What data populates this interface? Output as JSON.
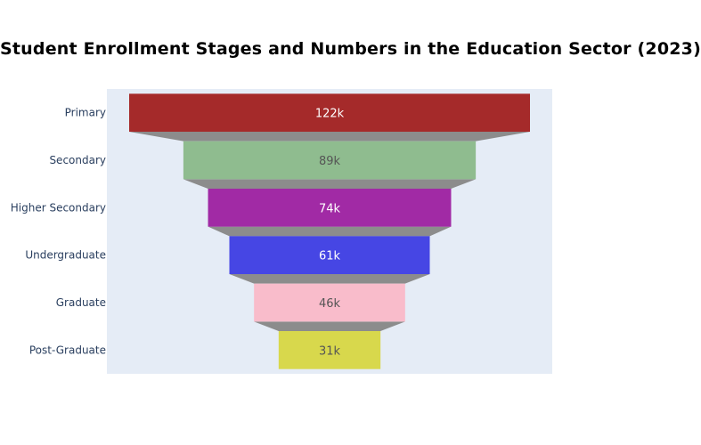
{
  "chart_data": {
    "type": "funnel",
    "title": "Student Enrollment Stages and Numbers in the Education Sector (2023)",
    "stages": [
      {
        "label": "Primary",
        "value": 122000,
        "display": "122k",
        "color": "#a52a2a",
        "text_color": "#ffffff"
      },
      {
        "label": "Secondary",
        "value": 89000,
        "display": "89k",
        "color": "#8fbc8f",
        "text_color": "#555555"
      },
      {
        "label": "Higher Secondary",
        "value": 74000,
        "display": "74k",
        "color": "#a12aa5",
        "text_color": "#ffffff"
      },
      {
        "label": "Undergraduate",
        "value": 61000,
        "display": "61k",
        "color": "#4646e4",
        "text_color": "#ffffff"
      },
      {
        "label": "Graduate",
        "value": 46000,
        "display": "46k",
        "color": "#f9bccb",
        "text_color": "#555555"
      },
      {
        "label": "Post-Graduate",
        "value": 31000,
        "display": "31k",
        "color": "#d8d84c",
        "text_color": "#555555"
      }
    ],
    "connector_color": "#8c8c8c",
    "plot_background": "#e5ecf6",
    "grid": false,
    "legend": "none"
  }
}
